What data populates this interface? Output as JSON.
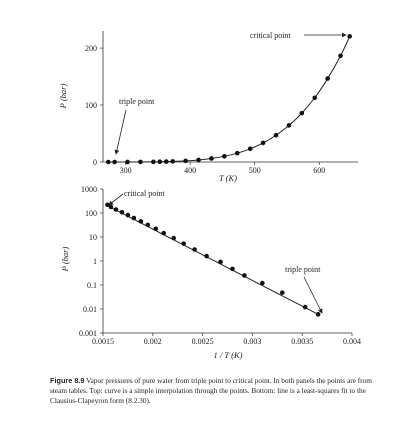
{
  "chart_data": [
    {
      "type": "line",
      "panel": "top",
      "xlabel": "T (K)",
      "ylabel": "P (bar)",
      "xlim": [
        265,
        660
      ],
      "ylim": [
        0,
        230
      ],
      "xticks": [
        300,
        400,
        500,
        600
      ],
      "yticks": [
        0,
        100,
        200
      ],
      "series": [
        {
          "x": [
            273.16,
            283,
            303,
            323,
            343,
            353,
            363,
            373,
            393,
            413,
            433,
            453,
            473,
            493,
            513,
            533,
            553,
            573,
            593,
            613,
            633,
            647.1
          ],
          "y": [
            0.006,
            0.012,
            0.042,
            0.12,
            0.31,
            0.47,
            0.7,
            1.01,
            1.99,
            3.6,
            6.2,
            10.0,
            15.5,
            23.2,
            33.5,
            47.0,
            64.2,
            85.8,
            112.8,
            146.5,
            186.5,
            220.6
          ]
        }
      ],
      "annotations": [
        {
          "text": "critical point"
        },
        {
          "text": "triple point"
        }
      ]
    },
    {
      "type": "line",
      "panel": "bottom",
      "xlabel": "1 / T (K)",
      "ylabel": "P (bar)",
      "yscale": "log",
      "xlim": [
        0.0015,
        0.004
      ],
      "ylim": [
        0.001,
        1000
      ],
      "xticks": [
        0.0015,
        0.002,
        0.0025,
        0.003,
        0.0035,
        0.004
      ],
      "xticklabels": [
        "0.0015",
        "0.002",
        "0.0025",
        "0.003",
        "0.0035",
        "0.004"
      ],
      "yticks": [
        0.001,
        0.01,
        0.1,
        1,
        10,
        100,
        1000
      ],
      "yticklabels": [
        "0.001",
        "0.01",
        "0.1",
        "1",
        "10",
        "100",
        "1000"
      ],
      "series": [
        {
          "x": [
            0.001545,
            0.00158,
            0.00163,
            0.00169,
            0.00175,
            0.00181,
            0.00188,
            0.00195,
            0.00203,
            0.00211,
            0.00221,
            0.00231,
            0.00242,
            0.00254,
            0.00268,
            0.0028,
            0.00292,
            0.0031,
            0.0033,
            0.00353,
            0.00366
          ],
          "y": [
            220.6,
            178,
            140,
            108,
            82,
            61.6,
            44.8,
            32,
            22,
            14.5,
            9,
            5.3,
            3,
            1.6,
            0.92,
            0.47,
            0.25,
            0.12,
            0.048,
            0.012,
            0.006
          ]
        }
      ],
      "fit": {
        "x": [
          0.001545,
          0.00366
        ],
        "y": [
          200,
          0.006
        ]
      },
      "annotations": [
        {
          "text": "critical point"
        },
        {
          "text": "triple point"
        }
      ]
    }
  ],
  "caption": {
    "label": "Figure 8.9",
    "text": "Vapor pressures of pure water from triple point to critical point. In both panels the points are from steam tables. Top: curve is a simple interpolation through the points. Bottom: line is a least-squares fit to the Clausius-Clapeyron form (8.2.30)."
  }
}
